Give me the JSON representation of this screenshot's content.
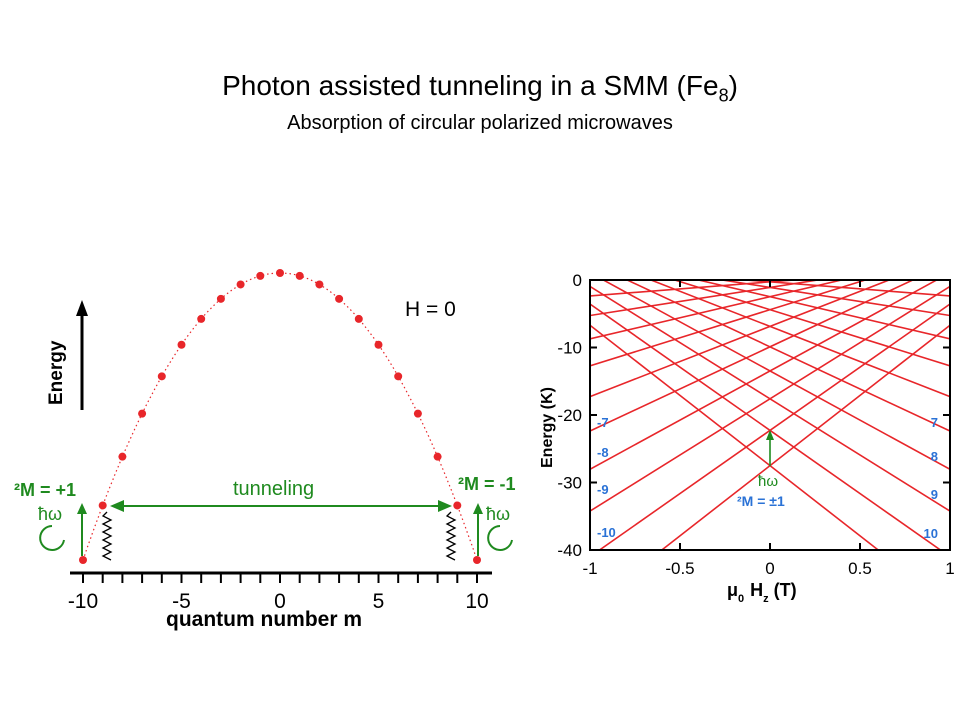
{
  "title": {
    "main": "Photon assisted tunneling in a SMM (Fe",
    "sub8": "8",
    "close": ")"
  },
  "subtitle": "Absorption of circular polarized microwaves",
  "left_diagram": {
    "h_label": "H = 0",
    "energy_label": "Energy",
    "tunneling_label": "tunneling",
    "delta_plus": "²M = +1",
    "delta_minus": "²M = -1",
    "hbar_omega": "ħω",
    "xlabel": "quantum number m",
    "xticks": [
      "-10",
      "-5",
      "0",
      "5",
      "10"
    ],
    "colors": {
      "points": "#e8262a",
      "arrow": "#1f8a1f",
      "labels": "#1f8a1f"
    }
  },
  "chart_data": {
    "type": "line",
    "xlabel": "μ0 Hz (T)",
    "ylabel": "Energy (K)",
    "xlim": [
      -1,
      1
    ],
    "ylim": [
      -40,
      0
    ],
    "xticks": [
      "-1",
      "-0.5",
      "0",
      "0.5",
      "1"
    ],
    "yticks": [
      "0",
      "-10",
      "-20",
      "-30",
      "-40"
    ],
    "left_labels": [
      "-7",
      "-8",
      "-9",
      "-10"
    ],
    "right_labels": [
      "7",
      "8",
      "9",
      "10"
    ],
    "annotation_hw": "ħω",
    "annotation_dm": "²M = ±1",
    "colors": {
      "lines": "#e8262a",
      "labels": "#2a72d6",
      "arrow": "#1f8a1f"
    }
  }
}
